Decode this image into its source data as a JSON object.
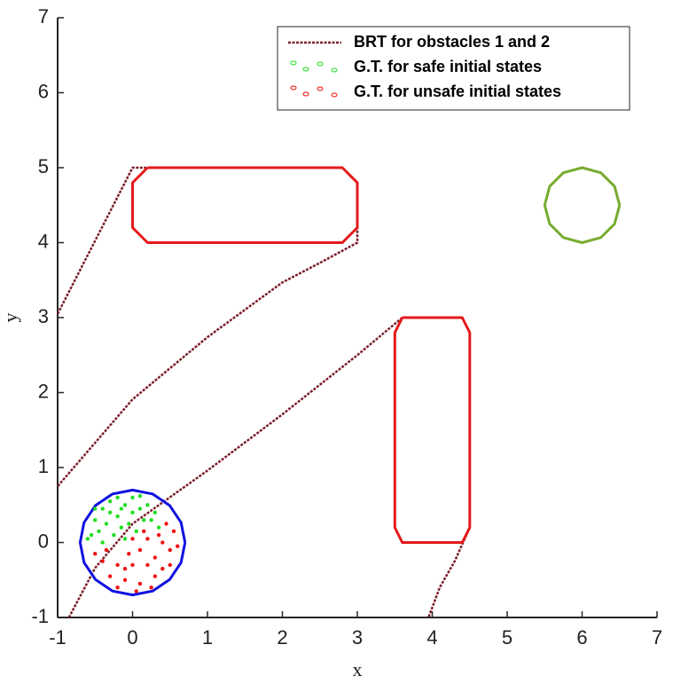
{
  "chart_data": {
    "type": "line",
    "xlabel": "x",
    "ylabel": "y",
    "xlim": [
      -1,
      7
    ],
    "ylim": [
      -1,
      7
    ],
    "xticks": [
      -1,
      0,
      1,
      2,
      3,
      4,
      5,
      6,
      7
    ],
    "yticks": [
      -1,
      0,
      1,
      2,
      3,
      4,
      5,
      6,
      7
    ],
    "legend": "top-right",
    "series": [
      {
        "name": "BRT for obstacles 1 and 2",
        "type": "line",
        "color": "#7a1f2b",
        "dash": true,
        "x": [
          -1,
          0,
          2.8,
          3,
          3,
          2.5,
          2,
          1,
          0,
          -1,
          null,
          3.6,
          3,
          2,
          1,
          0,
          -0.5,
          -0.85,
          null,
          4.5,
          4.3,
          4.1,
          3.95
        ],
        "values": [
          3.05,
          5,
          5,
          4.8,
          4.0,
          3.73,
          3.47,
          2.74,
          1.91,
          0.75,
          null,
          3.0,
          2.5,
          1.71,
          0.96,
          0.25,
          -0.34,
          -1,
          null,
          0.2,
          -0.25,
          -0.6,
          -1
        ]
      },
      {
        "type": "line",
        "color": "#e41a1c",
        "x": [
          0.2,
          2.8,
          3,
          3,
          2.8,
          0.2,
          0,
          0,
          0.2
        ],
        "values": [
          5,
          5,
          4.8,
          4.2,
          4,
          4,
          4.2,
          4.8,
          5
        ]
      },
      {
        "type": "line",
        "color": "#e41a1c",
        "x": [
          3.6,
          4.4,
          4.5,
          4.5,
          4.4,
          3.6,
          3.5,
          3.5,
          3.6
        ],
        "values": [
          3,
          3,
          2.8,
          0.2,
          0,
          0,
          0.2,
          2.8,
          3
        ]
      },
      {
        "type": "line",
        "color": "#77ac30",
        "x": [
          6.5,
          6.433,
          6.25,
          6,
          5.75,
          5.567,
          5.5,
          5.567,
          5.75,
          6,
          6.25,
          6.433,
          6.5
        ],
        "values": [
          4.5,
          4.75,
          4.933,
          5,
          4.933,
          4.75,
          4.5,
          4.25,
          4.067,
          4,
          4.067,
          4.25,
          4.5
        ]
      },
      {
        "type": "line",
        "color": "#1010e0",
        "x": [
          0.7,
          0.647,
          0.495,
          0.268,
          0,
          -0.268,
          -0.495,
          -0.647,
          -0.7,
          -0.647,
          -0.495,
          -0.268,
          0,
          0.268,
          0.495,
          0.647,
          0.7
        ],
        "values": [
          0,
          0.268,
          0.495,
          0.647,
          0.7,
          0.647,
          0.495,
          0.268,
          0,
          -0.268,
          -0.495,
          -0.647,
          -0.7,
          -0.647,
          -0.495,
          -0.268,
          0
        ]
      },
      {
        "name": "G.T. for safe initial states",
        "type": "scatter",
        "color": "#22dd22",
        "x": [
          -0.5,
          -0.4,
          -0.3,
          -0.2,
          -0.1,
          0,
          0.1,
          0.2,
          0.3,
          -0.55,
          -0.45,
          -0.35,
          -0.25,
          -0.15,
          -0.05,
          0.05,
          0.15,
          -0.6,
          -0.3,
          0,
          0.25,
          -0.2,
          0.1,
          -0.4,
          -0.1,
          0.35,
          -0.5,
          -0.15
        ],
        "values": [
          0.3,
          0.45,
          0.55,
          0.35,
          0.5,
          0.6,
          0.45,
          0.5,
          0.4,
          0.1,
          0.15,
          0.25,
          0.1,
          0.2,
          0.25,
          0.15,
          0.3,
          0.05,
          0.4,
          0.4,
          0.3,
          0.6,
          0.62,
          0.0,
          0.05,
          0.2,
          0.45,
          0.45
        ]
      },
      {
        "name": "G.T. for unsafe initial states",
        "type": "scatter",
        "color": "#ee1111",
        "x": [
          0.1,
          0.2,
          0.3,
          0.4,
          0.5,
          0.55,
          0.45,
          0.0,
          -0.2,
          -0.4,
          -0.3,
          -0.1,
          0.1,
          0.3,
          0.2,
          -0.05,
          0.0,
          0.15,
          0.6,
          -0.5,
          -0.2,
          0.05,
          0.4,
          0.25,
          -0.35,
          0.35,
          0.5,
          -0.1
        ],
        "values": [
          -0.1,
          0.05,
          -0.2,
          0.0,
          -0.1,
          0.15,
          0.25,
          -0.3,
          -0.3,
          -0.25,
          -0.45,
          -0.5,
          -0.55,
          -0.45,
          -0.3,
          -0.15,
          0.05,
          0.15,
          -0.05,
          -0.15,
          -0.6,
          -0.65,
          -0.35,
          -0.6,
          -0.1,
          0.1,
          -0.3,
          -0.35
        ]
      }
    ]
  }
}
